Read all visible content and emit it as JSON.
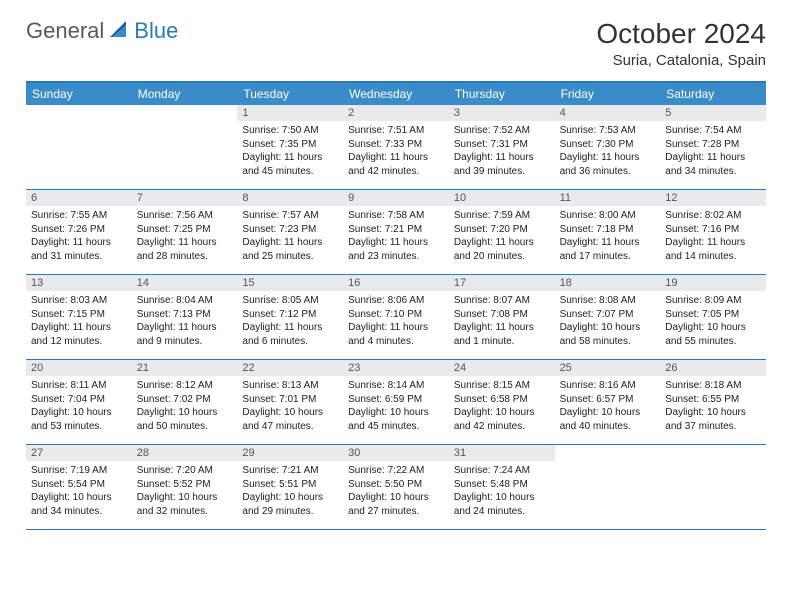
{
  "logo": {
    "general": "General",
    "blue": "Blue"
  },
  "title": "October 2024",
  "location": "Suria, Catalonia, Spain",
  "weekdays": [
    "Sunday",
    "Monday",
    "Tuesday",
    "Wednesday",
    "Thursday",
    "Friday",
    "Saturday"
  ],
  "colors": {
    "header_blue": "#3a8bc9",
    "border_blue": "#2a7ab8",
    "daynum_bg": "#e8eaec"
  },
  "weeks": [
    [
      null,
      null,
      {
        "n": "1",
        "sunrise": "Sunrise: 7:50 AM",
        "sunset": "Sunset: 7:35 PM",
        "daylight": "Daylight: 11 hours and 45 minutes."
      },
      {
        "n": "2",
        "sunrise": "Sunrise: 7:51 AM",
        "sunset": "Sunset: 7:33 PM",
        "daylight": "Daylight: 11 hours and 42 minutes."
      },
      {
        "n": "3",
        "sunrise": "Sunrise: 7:52 AM",
        "sunset": "Sunset: 7:31 PM",
        "daylight": "Daylight: 11 hours and 39 minutes."
      },
      {
        "n": "4",
        "sunrise": "Sunrise: 7:53 AM",
        "sunset": "Sunset: 7:30 PM",
        "daylight": "Daylight: 11 hours and 36 minutes."
      },
      {
        "n": "5",
        "sunrise": "Sunrise: 7:54 AM",
        "sunset": "Sunset: 7:28 PM",
        "daylight": "Daylight: 11 hours and 34 minutes."
      }
    ],
    [
      {
        "n": "6",
        "sunrise": "Sunrise: 7:55 AM",
        "sunset": "Sunset: 7:26 PM",
        "daylight": "Daylight: 11 hours and 31 minutes."
      },
      {
        "n": "7",
        "sunrise": "Sunrise: 7:56 AM",
        "sunset": "Sunset: 7:25 PM",
        "daylight": "Daylight: 11 hours and 28 minutes."
      },
      {
        "n": "8",
        "sunrise": "Sunrise: 7:57 AM",
        "sunset": "Sunset: 7:23 PM",
        "daylight": "Daylight: 11 hours and 25 minutes."
      },
      {
        "n": "9",
        "sunrise": "Sunrise: 7:58 AM",
        "sunset": "Sunset: 7:21 PM",
        "daylight": "Daylight: 11 hours and 23 minutes."
      },
      {
        "n": "10",
        "sunrise": "Sunrise: 7:59 AM",
        "sunset": "Sunset: 7:20 PM",
        "daylight": "Daylight: 11 hours and 20 minutes."
      },
      {
        "n": "11",
        "sunrise": "Sunrise: 8:00 AM",
        "sunset": "Sunset: 7:18 PM",
        "daylight": "Daylight: 11 hours and 17 minutes."
      },
      {
        "n": "12",
        "sunrise": "Sunrise: 8:02 AM",
        "sunset": "Sunset: 7:16 PM",
        "daylight": "Daylight: 11 hours and 14 minutes."
      }
    ],
    [
      {
        "n": "13",
        "sunrise": "Sunrise: 8:03 AM",
        "sunset": "Sunset: 7:15 PM",
        "daylight": "Daylight: 11 hours and 12 minutes."
      },
      {
        "n": "14",
        "sunrise": "Sunrise: 8:04 AM",
        "sunset": "Sunset: 7:13 PM",
        "daylight": "Daylight: 11 hours and 9 minutes."
      },
      {
        "n": "15",
        "sunrise": "Sunrise: 8:05 AM",
        "sunset": "Sunset: 7:12 PM",
        "daylight": "Daylight: 11 hours and 6 minutes."
      },
      {
        "n": "16",
        "sunrise": "Sunrise: 8:06 AM",
        "sunset": "Sunset: 7:10 PM",
        "daylight": "Daylight: 11 hours and 4 minutes."
      },
      {
        "n": "17",
        "sunrise": "Sunrise: 8:07 AM",
        "sunset": "Sunset: 7:08 PM",
        "daylight": "Daylight: 11 hours and 1 minute."
      },
      {
        "n": "18",
        "sunrise": "Sunrise: 8:08 AM",
        "sunset": "Sunset: 7:07 PM",
        "daylight": "Daylight: 10 hours and 58 minutes."
      },
      {
        "n": "19",
        "sunrise": "Sunrise: 8:09 AM",
        "sunset": "Sunset: 7:05 PM",
        "daylight": "Daylight: 10 hours and 55 minutes."
      }
    ],
    [
      {
        "n": "20",
        "sunrise": "Sunrise: 8:11 AM",
        "sunset": "Sunset: 7:04 PM",
        "daylight": "Daylight: 10 hours and 53 minutes."
      },
      {
        "n": "21",
        "sunrise": "Sunrise: 8:12 AM",
        "sunset": "Sunset: 7:02 PM",
        "daylight": "Daylight: 10 hours and 50 minutes."
      },
      {
        "n": "22",
        "sunrise": "Sunrise: 8:13 AM",
        "sunset": "Sunset: 7:01 PM",
        "daylight": "Daylight: 10 hours and 47 minutes."
      },
      {
        "n": "23",
        "sunrise": "Sunrise: 8:14 AM",
        "sunset": "Sunset: 6:59 PM",
        "daylight": "Daylight: 10 hours and 45 minutes."
      },
      {
        "n": "24",
        "sunrise": "Sunrise: 8:15 AM",
        "sunset": "Sunset: 6:58 PM",
        "daylight": "Daylight: 10 hours and 42 minutes."
      },
      {
        "n": "25",
        "sunrise": "Sunrise: 8:16 AM",
        "sunset": "Sunset: 6:57 PM",
        "daylight": "Daylight: 10 hours and 40 minutes."
      },
      {
        "n": "26",
        "sunrise": "Sunrise: 8:18 AM",
        "sunset": "Sunset: 6:55 PM",
        "daylight": "Daylight: 10 hours and 37 minutes."
      }
    ],
    [
      {
        "n": "27",
        "sunrise": "Sunrise: 7:19 AM",
        "sunset": "Sunset: 5:54 PM",
        "daylight": "Daylight: 10 hours and 34 minutes."
      },
      {
        "n": "28",
        "sunrise": "Sunrise: 7:20 AM",
        "sunset": "Sunset: 5:52 PM",
        "daylight": "Daylight: 10 hours and 32 minutes."
      },
      {
        "n": "29",
        "sunrise": "Sunrise: 7:21 AM",
        "sunset": "Sunset: 5:51 PM",
        "daylight": "Daylight: 10 hours and 29 minutes."
      },
      {
        "n": "30",
        "sunrise": "Sunrise: 7:22 AM",
        "sunset": "Sunset: 5:50 PM",
        "daylight": "Daylight: 10 hours and 27 minutes."
      },
      {
        "n": "31",
        "sunrise": "Sunrise: 7:24 AM",
        "sunset": "Sunset: 5:48 PM",
        "daylight": "Daylight: 10 hours and 24 minutes."
      },
      null,
      null
    ]
  ]
}
